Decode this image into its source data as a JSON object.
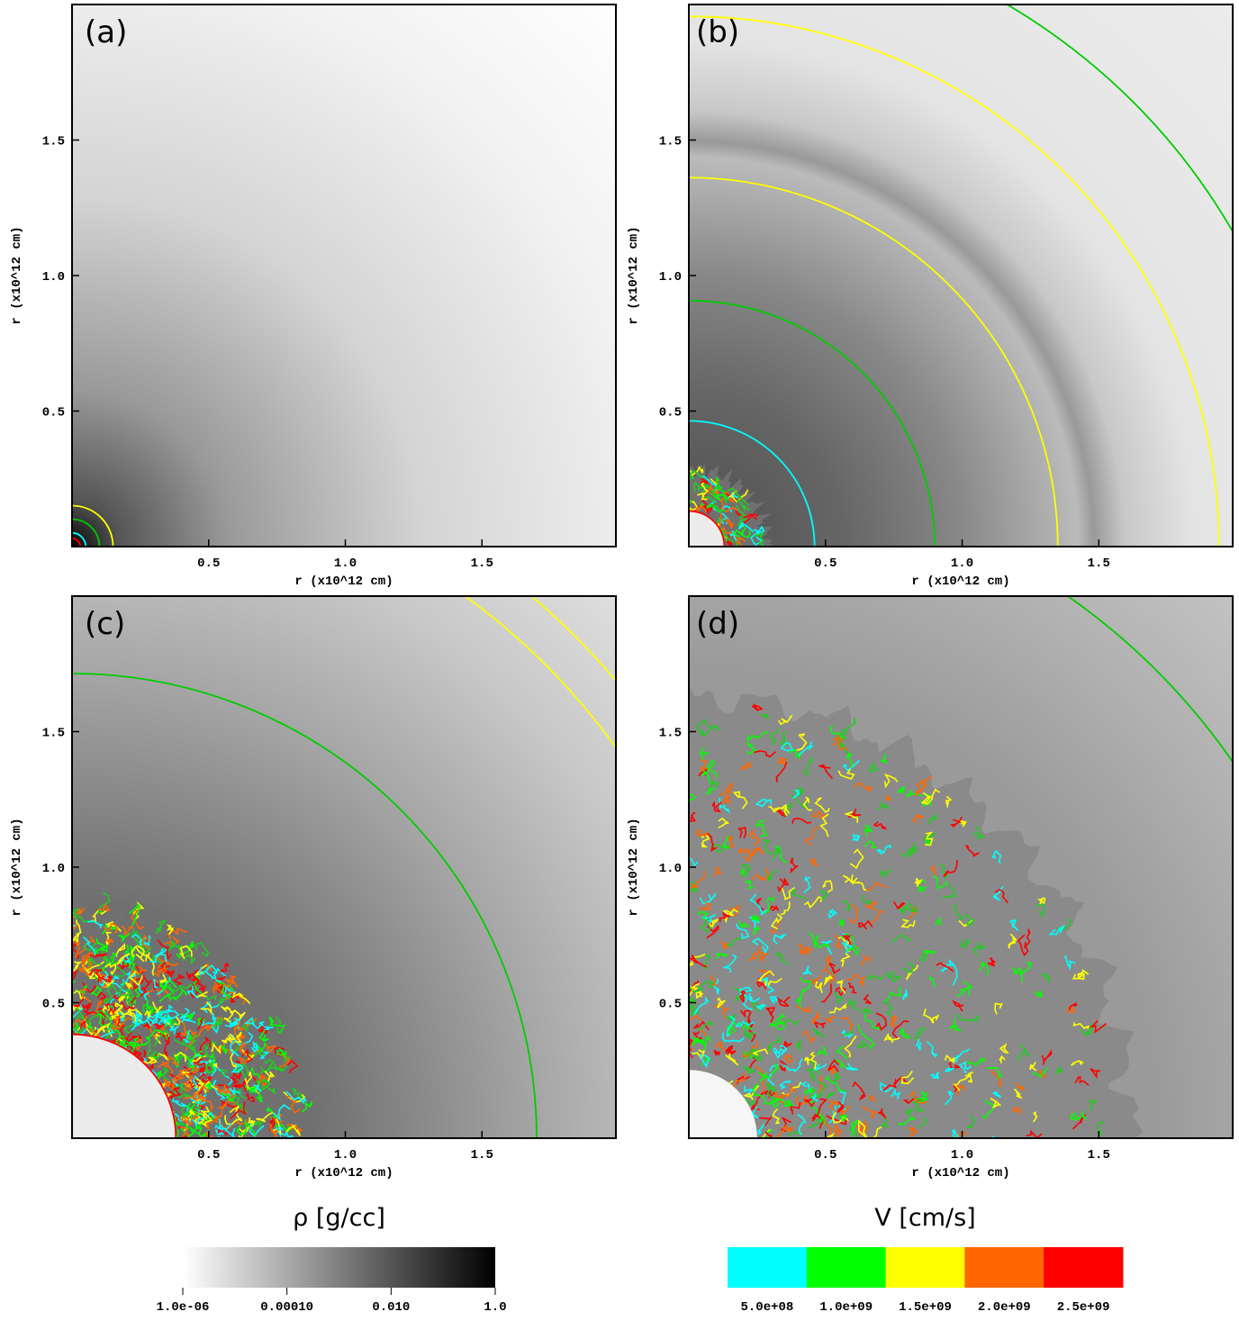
{
  "chart_data": [
    {
      "type": "image",
      "label": "(a)",
      "xlabel": "r (x10^12 cm)",
      "ylabel": "r (x10^12 cm)",
      "xlim": [
        0,
        1.99
      ],
      "ylim": [
        0,
        2
      ],
      "xticks": [
        0.5,
        {
          "value": 1,
          "label": "1.0"
        },
        1.5
      ],
      "yticks": [
        0.5,
        {
          "value": 1,
          "label": "1.0"
        },
        1.5
      ]
    },
    {
      "type": "image",
      "label": "(b)",
      "xlabel": "r (x10^12 cm)",
      "ylabel": "r (x10^12 cm)",
      "xlim": [
        0,
        1.99
      ],
      "ylim": [
        0,
        2
      ],
      "xticks": [
        0.5,
        {
          "value": 1,
          "label": "1.0"
        },
        1.5
      ],
      "yticks": [
        0.5,
        {
          "value": 1,
          "label": "1.0"
        },
        1.5
      ]
    },
    {
      "type": "image",
      "label": "(c)",
      "xlabel": "r (x10^12 cm)",
      "ylabel": "r (x10^12 cm)",
      "xlim": [
        0,
        1.99
      ],
      "ylim": [
        0,
        2
      ],
      "xticks": [
        0.5,
        {
          "value": 1,
          "label": "1.0"
        },
        1.5
      ],
      "yticks": [
        0.5,
        {
          "value": 1,
          "label": "1.0"
        },
        1.5
      ]
    },
    {
      "type": "image",
      "label": "(d)",
      "xlabel": "r (x10^12 cm)",
      "ylabel": "r (x10^12 cm)",
      "xlim": [
        0,
        1.99
      ],
      "ylim": [
        0,
        2
      ],
      "xticks": [
        0.5,
        {
          "value": 1,
          "label": "1.0"
        },
        1.5
      ],
      "yticks": [
        0.5,
        {
          "value": 1,
          "label": "1.0"
        },
        1.5
      ]
    }
  ],
  "colorbars": [
    {
      "title": "ρ [g/cc]",
      "scale": "log",
      "lim": [
        1e-06,
        1
      ],
      "colors": [
        "#ffffff",
        "#000000"
      ],
      "ticks": [
        {
          "value": 1e-06,
          "label": "1.0e-06"
        },
        {
          "value": 0.0001,
          "label": "0.00010"
        },
        {
          "value": 0.01,
          "label": "0.010"
        },
        {
          "value": 1,
          "label": "1.0"
        }
      ]
    },
    {
      "title": "V [cm/s]",
      "scale": "linear",
      "lim": [
        250000000,
        2750000000
      ],
      "colors": [
        "#00ffff",
        "#00ff00",
        "#ffff00",
        "#ff6600",
        "#ff0000"
      ],
      "ticks": [
        {
          "value": 500000000,
          "label": "5.0e+08"
        },
        {
          "value": 1000000000,
          "label": "1.0e+09"
        },
        {
          "value": 1500000000,
          "label": "1.5e+09"
        },
        {
          "value": 2000000000,
          "label": "2.0e+09"
        },
        {
          "value": 2500000000,
          "label": "2.5e+09"
        }
      ]
    }
  ]
}
